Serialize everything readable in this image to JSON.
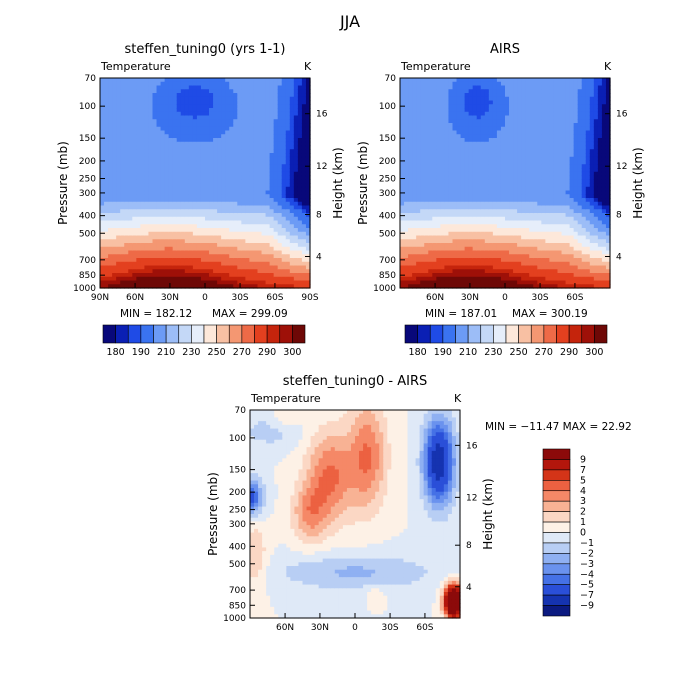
{
  "figure_title": "JJA",
  "chart_data": [
    {
      "type": "heatmap",
      "subtype": "contour",
      "title": "steffen_tuning0 (yrs 1-1)",
      "variable_label": "Temperature",
      "units": "K",
      "ylabel": "Pressure (mb)",
      "ylabel_right": "Height (km)",
      "x_ticks": [
        "90N",
        "60N",
        "30N",
        "0",
        "30S",
        "60S",
        "90S"
      ],
      "y_ticks": [
        "70",
        "100",
        "150",
        "200",
        "250",
        "300",
        "400",
        "500",
        "700",
        "850",
        "1000"
      ],
      "height_ticks": [
        "4",
        "8",
        "12",
        "16"
      ],
      "min_label": "MIN = 182.12",
      "max_label": "MAX = 299.09",
      "min": 182.12,
      "max": 299.09,
      "colorbar_labels": [
        "180",
        "190",
        "210",
        "230",
        "250",
        "270",
        "290",
        "300"
      ]
    },
    {
      "type": "heatmap",
      "subtype": "contour",
      "title": "AIRS",
      "variable_label": "Temperature",
      "units": "K",
      "ylabel": "Pressure (mb)",
      "ylabel_right": "Height (km)",
      "x_ticks": [
        "60N",
        "30N",
        "0",
        "30S",
        "60S"
      ],
      "y_ticks": [
        "70",
        "100",
        "150",
        "200",
        "250",
        "300",
        "400",
        "500",
        "700",
        "850",
        "1000"
      ],
      "height_ticks": [
        "4",
        "8",
        "12",
        "16"
      ],
      "min_label": "MIN = 187.01",
      "max_label": "MAX = 300.19",
      "min": 187.01,
      "max": 300.19,
      "colorbar_labels": [
        "180",
        "190",
        "210",
        "230",
        "250",
        "270",
        "290",
        "300"
      ]
    },
    {
      "type": "heatmap",
      "subtype": "contour-difference",
      "title": "steffen_tuning0 - AIRS",
      "variable_label": "Temperature",
      "units": "K",
      "ylabel": "Pressure (mb)",
      "ylabel_right": "Height (km)",
      "x_ticks": [
        "60N",
        "30N",
        "0",
        "30S",
        "60S"
      ],
      "y_ticks": [
        "70",
        "100",
        "150",
        "200",
        "250",
        "300",
        "400",
        "500",
        "700",
        "850",
        "1000"
      ],
      "height_ticks": [
        "4",
        "8",
        "12",
        "16"
      ],
      "minmax_label": "MIN = −11.47   MAX =  22.92",
      "min": -11.47,
      "max": 22.92,
      "colorbar_labels": [
        "9",
        "7",
        "5",
        "4",
        "3",
        "2",
        "1",
        "0",
        "−1",
        "−2",
        "−3",
        "−4",
        "−5",
        "−7",
        "−9"
      ]
    }
  ],
  "colors": {
    "abs_scale": [
      "#08087a",
      "#0a1fb4",
      "#1f4be6",
      "#3a73f0",
      "#6c9bf5",
      "#9cbdf7",
      "#c4d8f7",
      "#e6eefa",
      "#fde8da",
      "#f8c0a3",
      "#f49772",
      "#ee6a47",
      "#e3401f",
      "#c5240c",
      "#9e1008",
      "#6e0806"
    ],
    "diff_scale": [
      "#8c0a0a",
      "#b3160c",
      "#d43418",
      "#ec6141",
      "#f58867",
      "#f8b294",
      "#fbd7c4",
      "#fdf1e6",
      "#dfe9f7",
      "#b8cef4",
      "#8fb0f2",
      "#6a92ee",
      "#4571e6",
      "#2a4fd8",
      "#1533b0",
      "#0b1a80"
    ]
  }
}
